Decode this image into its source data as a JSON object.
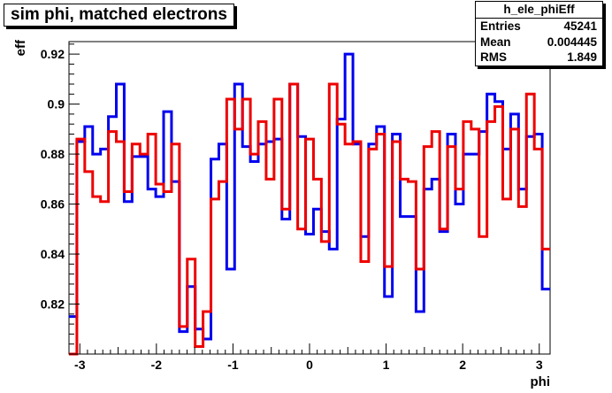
{
  "chart_data": {
    "type": "line",
    "style": "step-histogram",
    "title": "sim phi, matched electrons",
    "xlabel": "phi",
    "ylabel": "eff",
    "xlim": [
      -3.1416,
      3.1416
    ],
    "ylim": [
      0.8,
      0.925
    ],
    "x_ticks": [
      -3,
      -2,
      -1,
      0,
      1,
      2,
      3
    ],
    "x_tick_labels": [
      "-3",
      "-2",
      "-1",
      "0",
      "1",
      "2",
      "3"
    ],
    "y_ticks": [
      0.82,
      0.84,
      0.86,
      0.88,
      0.9,
      0.92
    ],
    "y_tick_labels": [
      "0.82",
      "0.84",
      "0.86",
      "0.88",
      "0.9",
      "0.92"
    ],
    "grid": false,
    "bins": 60,
    "colors": {
      "blue": "#0000ee",
      "red": "#ee0000"
    },
    "series": [
      {
        "color": "blue",
        "values": [
          0.815,
          0.885,
          0.891,
          0.88,
          0.882,
          0.895,
          0.908,
          0.861,
          0.879,
          0.879,
          0.866,
          0.863,
          0.897,
          0.869,
          0.809,
          0.827,
          0.81,
          0.806,
          0.878,
          0.884,
          0.834,
          0.908,
          0.883,
          0.877,
          0.884,
          0.885,
          0.886,
          0.854,
          0.908,
          0.887,
          0.848,
          0.858,
          0.849,
          0.842,
          0.894,
          0.92,
          0.884,
          0.847,
          0.884,
          0.891,
          0.823,
          0.888,
          0.855,
          0.855,
          0.817,
          0.866,
          0.87,
          0.849,
          0.888,
          0.86,
          0.88,
          0.88,
          0.889,
          0.904,
          0.901,
          0.882,
          0.896,
          0.866,
          0.887,
          0.888,
          0.826
        ]
      },
      {
        "color": "red",
        "values": [
          0.8,
          0.886,
          0.873,
          0.863,
          0.861,
          0.889,
          0.885,
          0.865,
          0.884,
          0.88,
          0.888,
          0.868,
          0.865,
          0.884,
          0.811,
          0.838,
          0.803,
          0.817,
          0.862,
          0.869,
          0.902,
          0.89,
          0.902,
          0.88,
          0.893,
          0.87,
          0.902,
          0.858,
          0.908,
          0.85,
          0.886,
          0.87,
          0.845,
          0.908,
          0.892,
          0.884,
          0.885,
          0.837,
          0.882,
          0.888,
          0.835,
          0.885,
          0.87,
          0.869,
          0.834,
          0.883,
          0.889,
          0.85,
          0.883,
          0.866,
          0.893,
          0.89,
          0.847,
          0.893,
          0.899,
          0.862,
          0.89,
          0.859,
          0.904,
          0.882,
          0.842
        ]
      }
    ],
    "stats": {
      "name": "h_ele_phiEff",
      "entries_label": "Entries",
      "entries": "45241",
      "mean_label": "Mean",
      "mean": "0.004445",
      "rms_label": "RMS",
      "rms": "1.849"
    }
  }
}
